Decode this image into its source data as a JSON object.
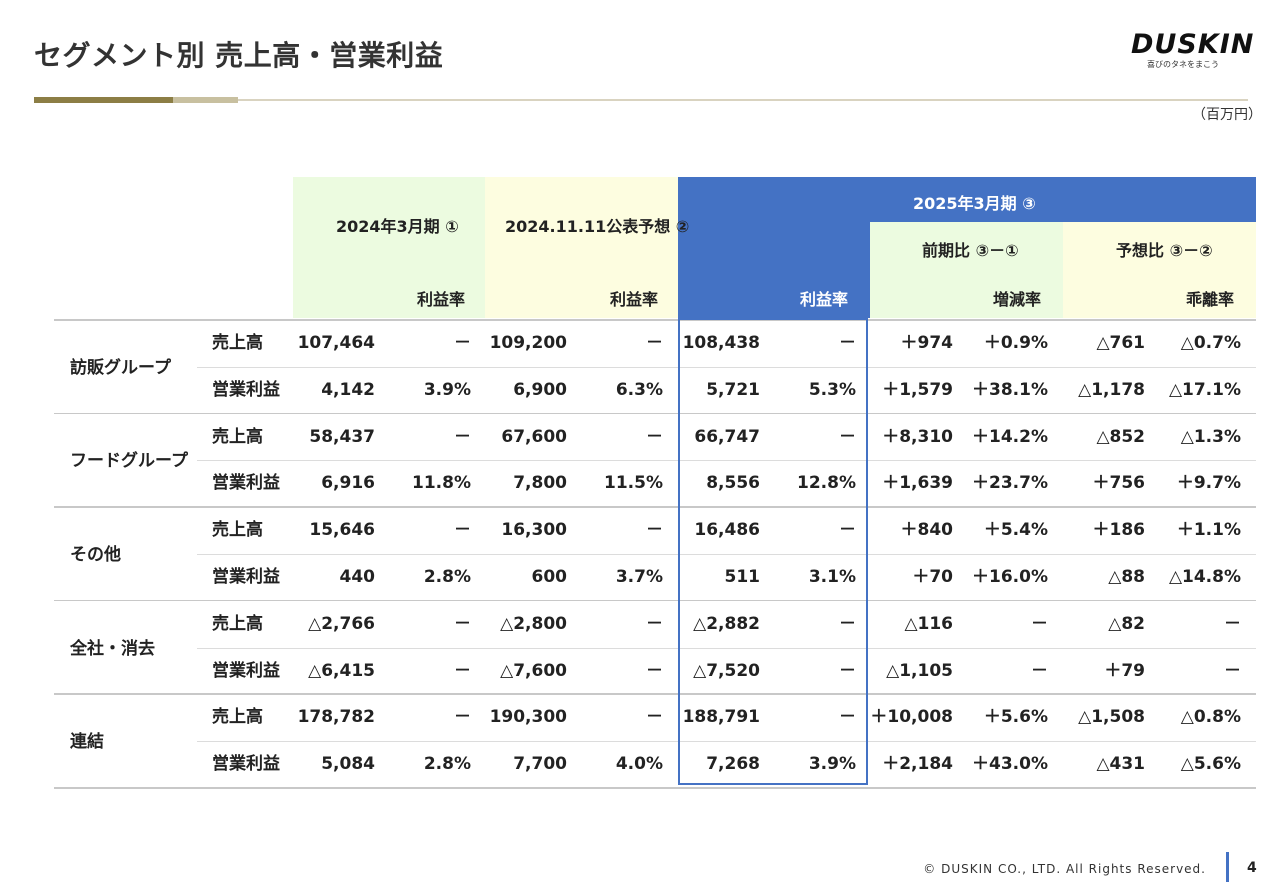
{
  "title": "セグメント別 売上高・営業利益",
  "logo": {
    "brand": "DUSKIN",
    "tagline": "喜びのタネをまこう"
  },
  "unit": "（百万円）",
  "header": {
    "fy2024": "2024年3月期 ①",
    "forecast": "2024.11.11公表予想 ②",
    "fy2025": "2025年3月期 ③",
    "yoy": "前期比 ③－①",
    "vs_forecast": "予想比 ③－②",
    "margin": "利益率",
    "growth": "増減率",
    "deviation": "乖離率"
  },
  "segments": [
    {
      "name": "訪販グループ",
      "rows": [
        {
          "item": "売上高",
          "v": [
            "107,464",
            "－",
            "109,200",
            "－",
            "108,438",
            "－",
            "＋974",
            "＋0.9%",
            "△761",
            "△0.7%"
          ]
        },
        {
          "item": "営業利益",
          "v": [
            "4,142",
            "3.9%",
            "6,900",
            "6.3%",
            "5,721",
            "5.3%",
            "＋1,579",
            "＋38.1%",
            "△1,178",
            "△17.1%"
          ]
        }
      ]
    },
    {
      "name": "フードグループ",
      "rows": [
        {
          "item": "売上高",
          "v": [
            "58,437",
            "－",
            "67,600",
            "－",
            "66,747",
            "－",
            "＋8,310",
            "＋14.2%",
            "△852",
            "△1.3%"
          ]
        },
        {
          "item": "営業利益",
          "v": [
            "6,916",
            "11.8%",
            "7,800",
            "11.5%",
            "8,556",
            "12.8%",
            "＋1,639",
            "＋23.7%",
            "＋756",
            "＋9.7%"
          ]
        }
      ]
    },
    {
      "name": "その他",
      "rows": [
        {
          "item": "売上高",
          "v": [
            "15,646",
            "－",
            "16,300",
            "－",
            "16,486",
            "－",
            "＋840",
            "＋5.4%",
            "＋186",
            "＋1.1%"
          ]
        },
        {
          "item": "営業利益",
          "v": [
            "440",
            "2.8%",
            "600",
            "3.7%",
            "511",
            "3.1%",
            "＋70",
            "＋16.0%",
            "△88",
            "△14.8%"
          ]
        }
      ]
    },
    {
      "name": "全社・消去",
      "rows": [
        {
          "item": "売上高",
          "v": [
            "△2,766",
            "－",
            "△2,800",
            "－",
            "△2,882",
            "－",
            "△116",
            "－",
            "△82",
            "－"
          ]
        },
        {
          "item": "営業利益",
          "v": [
            "△6,415",
            "－",
            "△7,600",
            "－",
            "△7,520",
            "－",
            "△1,105",
            "－",
            "＋79",
            "－"
          ]
        }
      ]
    },
    {
      "name": "連結",
      "rows": [
        {
          "item": "売上高",
          "v": [
            "178,782",
            "－",
            "190,300",
            "－",
            "188,791",
            "－",
            "＋10,008",
            "＋5.6%",
            "△1,508",
            "△0.8%"
          ]
        },
        {
          "item": "営業利益",
          "v": [
            "5,084",
            "2.8%",
            "7,700",
            "4.0%",
            "7,268",
            "3.9%",
            "＋2,184",
            "＋43.0%",
            "△431",
            "△5.6%"
          ]
        }
      ]
    }
  ],
  "footer": {
    "copyright": "© DUSKIN CO., LTD. All Rights Reserved.",
    "page": "4"
  }
}
